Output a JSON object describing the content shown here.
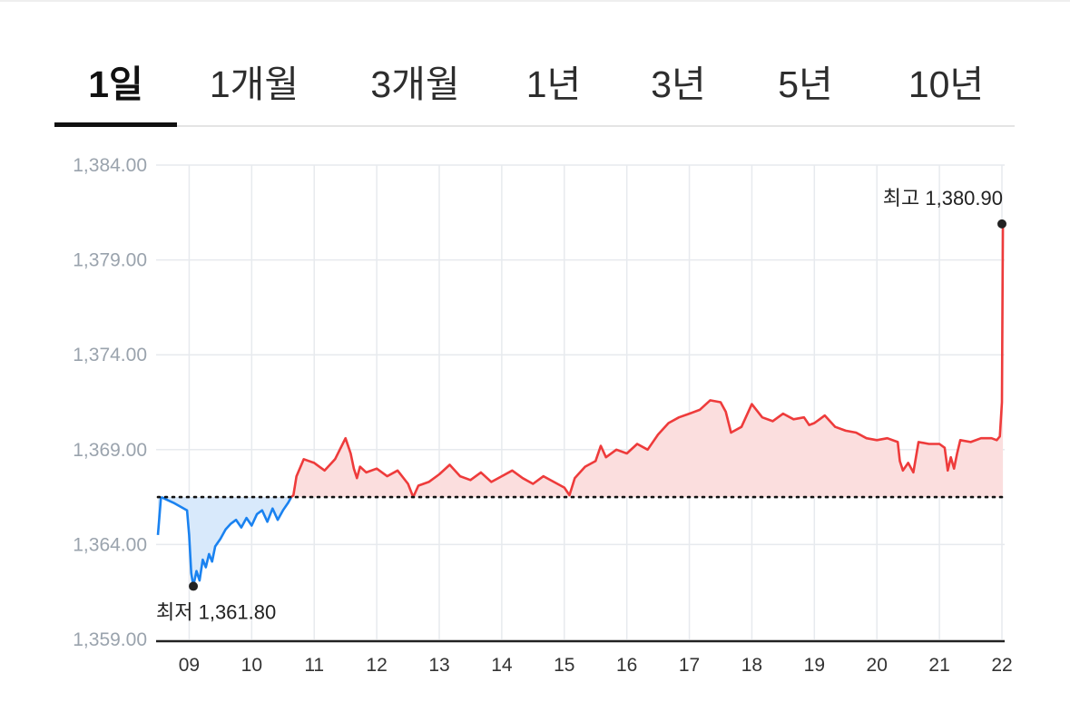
{
  "tabs": [
    {
      "label": "1일",
      "active": true
    },
    {
      "label": "1개월",
      "active": false
    },
    {
      "label": "3개월",
      "active": false
    },
    {
      "label": "1년",
      "active": false
    },
    {
      "label": "3년",
      "active": false
    },
    {
      "label": "5년",
      "active": false
    },
    {
      "label": "10년",
      "active": false
    }
  ],
  "chart_data": {
    "type": "line",
    "title": "",
    "xlabel": "",
    "ylabel": "",
    "ylim": [
      1359,
      1384
    ],
    "xlim": [
      "08:30",
      "22:00"
    ],
    "yticks": [
      "1,384.00",
      "1,379.00",
      "1,374.00",
      "1,369.00",
      "1,364.00",
      "1,359.00"
    ],
    "xticks": [
      "09",
      "10",
      "11",
      "12",
      "13",
      "14",
      "15",
      "16",
      "17",
      "18",
      "19",
      "20",
      "21",
      "22"
    ],
    "grid": true,
    "reference_value": 1366.5,
    "high": {
      "label": "최고 1,380.90",
      "x": "22:00",
      "y": 1380.9
    },
    "low": {
      "label": "최저 1,361.80",
      "x": "09:04",
      "y": 1361.8
    },
    "colors": {
      "above": "#ee3b3b",
      "below": "#1a82f0",
      "above_fill": "#fbdede",
      "below_fill": "#d8e9fb",
      "grid": "#e7eaee",
      "axis": "#222222"
    },
    "series": [
      {
        "x": [
          "08:30",
          "08:33",
          "08:45",
          "08:58",
          "09:00",
          "09:02",
          "09:04",
          "09:07",
          "09:10",
          "09:13",
          "09:16",
          "09:19",
          "09:22",
          "09:25",
          "09:30",
          "09:35",
          "09:40",
          "09:45",
          "09:50",
          "09:55",
          "10:00",
          "10:05",
          "10:10",
          "10:15",
          "10:20",
          "10:25",
          "10:30",
          "10:35",
          "10:38",
          "10:40",
          "10:43",
          "10:50",
          "11:00",
          "11:10",
          "11:20",
          "11:30",
          "11:35",
          "11:38",
          "11:41",
          "11:44",
          "11:50",
          "12:00",
          "12:10",
          "12:20",
          "12:30",
          "12:35",
          "12:40",
          "12:50",
          "13:00",
          "13:10",
          "13:20",
          "13:30",
          "13:40",
          "13:50",
          "14:00",
          "14:10",
          "14:20",
          "14:30",
          "14:40",
          "14:50",
          "15:00",
          "15:05",
          "15:10",
          "15:20",
          "15:30",
          "15:35",
          "15:40",
          "15:50",
          "16:00",
          "16:10",
          "16:20",
          "16:30",
          "16:40",
          "16:50",
          "17:00",
          "17:10",
          "17:20",
          "17:30",
          "17:35",
          "17:40",
          "17:50",
          "18:00",
          "18:10",
          "18:20",
          "18:30",
          "18:40",
          "18:50",
          "18:55",
          "19:00",
          "19:05",
          "19:10",
          "19:20",
          "19:30",
          "19:40",
          "19:50",
          "20:00",
          "20:10",
          "20:20",
          "20:22",
          "20:25",
          "20:30",
          "20:35",
          "20:40",
          "20:50",
          "21:00",
          "21:05",
          "21:08",
          "21:11",
          "21:14",
          "21:17",
          "21:20",
          "21:30",
          "21:40",
          "21:50",
          "21:55",
          "21:58",
          "22:00",
          "22:01"
        ],
        "y": [
          1364.5,
          1366.5,
          1366.2,
          1365.8,
          1364.5,
          1362.5,
          1361.8,
          1362.6,
          1362.1,
          1363.2,
          1362.8,
          1363.5,
          1363.1,
          1363.9,
          1364.3,
          1364.8,
          1365.1,
          1365.3,
          1364.9,
          1365.4,
          1365.0,
          1365.6,
          1365.8,
          1365.2,
          1365.9,
          1365.3,
          1365.8,
          1366.2,
          1366.5,
          1366.6,
          1367.6,
          1368.5,
          1368.3,
          1367.9,
          1368.5,
          1369.6,
          1368.8,
          1368.0,
          1367.5,
          1368.1,
          1367.8,
          1368.0,
          1367.6,
          1367.9,
          1367.2,
          1366.5,
          1367.1,
          1367.3,
          1367.7,
          1368.2,
          1367.6,
          1367.4,
          1367.8,
          1367.3,
          1367.6,
          1367.9,
          1367.5,
          1367.2,
          1367.6,
          1367.3,
          1367.0,
          1366.6,
          1367.5,
          1368.1,
          1368.4,
          1369.2,
          1368.6,
          1369.0,
          1368.8,
          1369.3,
          1369.0,
          1369.8,
          1370.4,
          1370.7,
          1370.9,
          1371.1,
          1371.6,
          1371.5,
          1371.0,
          1369.9,
          1370.2,
          1371.4,
          1370.7,
          1370.5,
          1370.9,
          1370.6,
          1370.7,
          1370.3,
          1370.4,
          1370.6,
          1370.8,
          1370.2,
          1370.0,
          1369.9,
          1369.6,
          1369.5,
          1369.6,
          1369.4,
          1368.4,
          1367.9,
          1368.3,
          1367.8,
          1369.4,
          1369.3,
          1369.3,
          1369.1,
          1367.9,
          1368.6,
          1368.0,
          1368.8,
          1369.5,
          1369.4,
          1369.6,
          1369.6,
          1369.5,
          1369.7,
          1371.5,
          1380.9
        ]
      }
    ]
  }
}
